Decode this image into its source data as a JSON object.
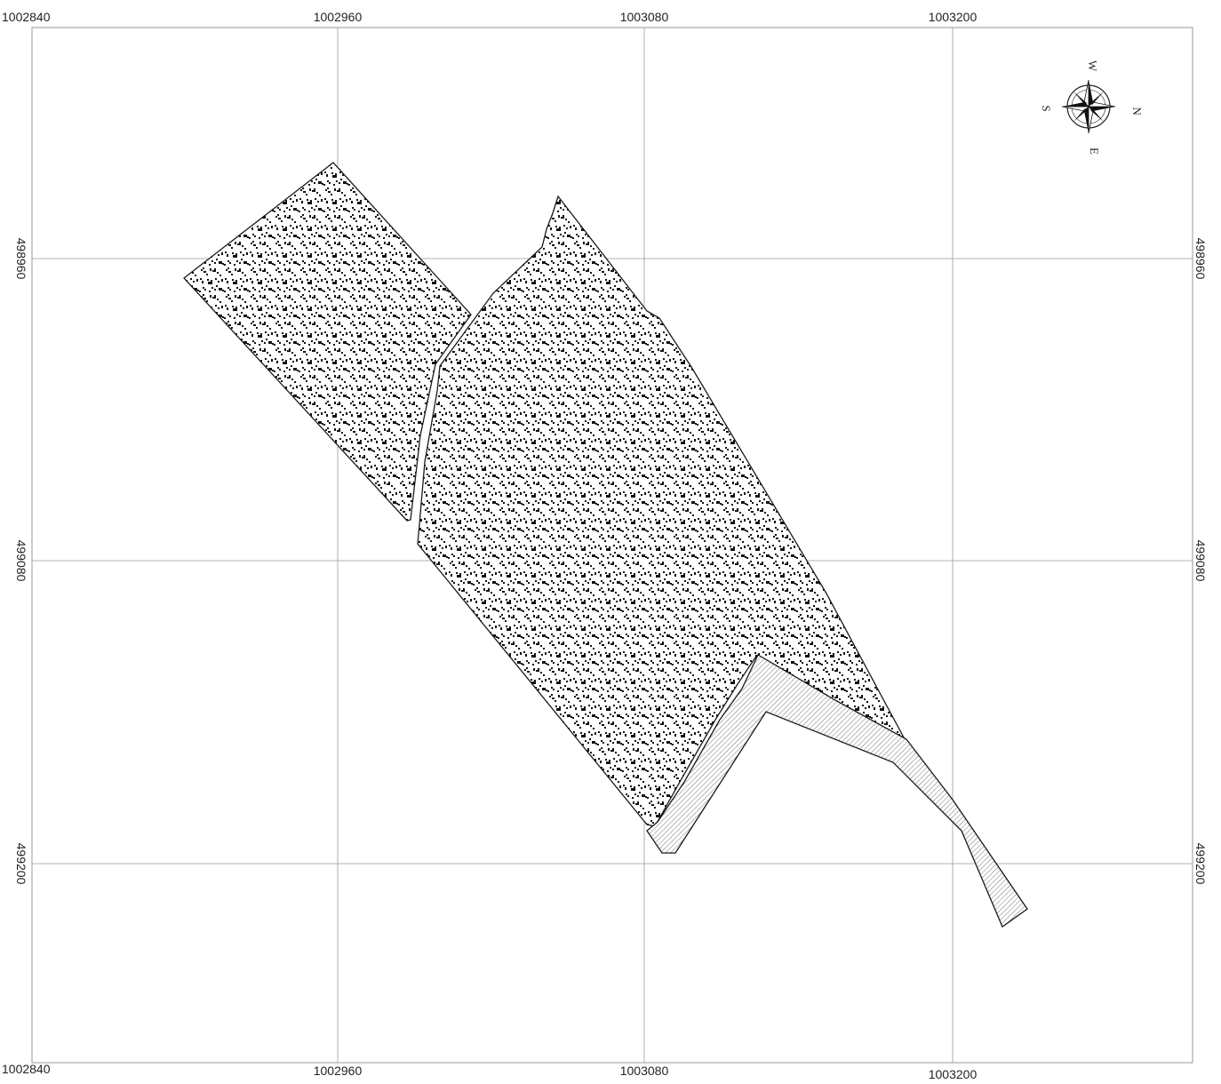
{
  "map": {
    "x_labels_top": [
      "1002840",
      "1002960",
      "1003080",
      "1003200"
    ],
    "x_labels_bottom": [
      "1002840",
      "1002960",
      "1003080",
      "1003200"
    ],
    "y_labels_left": [
      "498960",
      "499080",
      "499200"
    ],
    "y_labels_right": [
      "498960",
      "499080",
      "499200"
    ],
    "compass": {
      "north": "N",
      "south": "S",
      "east": "E",
      "west": "W"
    },
    "colors": {
      "grid": "#9a9a9a",
      "outline": "#1a1a1a",
      "pattern": "#111111",
      "hatch": "#555555"
    }
  }
}
